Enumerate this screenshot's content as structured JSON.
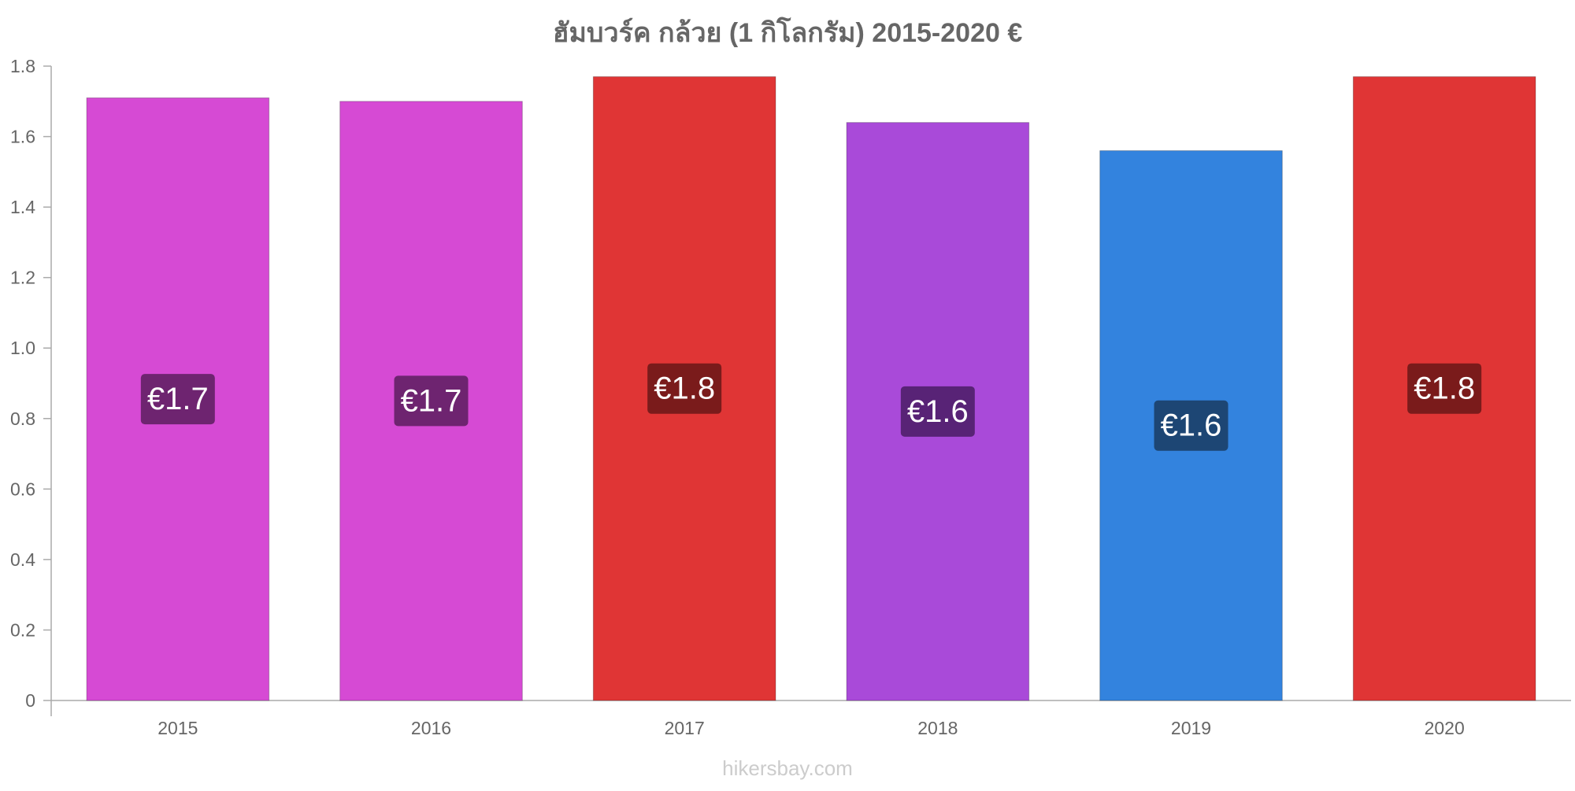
{
  "chart_data": {
    "type": "bar",
    "title": "ฮัมบวร์ค กล้วย (1 กิโลกรัม) 2015-2020 €",
    "categories": [
      "2015",
      "2016",
      "2017",
      "2018",
      "2019",
      "2020"
    ],
    "values": [
      1.71,
      1.7,
      1.77,
      1.64,
      1.56,
      1.77
    ],
    "data_labels": [
      "€1.7",
      "€1.7",
      "€1.8",
      "€1.6",
      "€1.6",
      "€1.8"
    ],
    "bar_colors": [
      "#d64ad4",
      "#d64ad4",
      "#e03535",
      "#a94ad9",
      "#3383de",
      "#e03535"
    ],
    "label_bg_colors": [
      "#6e2470",
      "#6e2470",
      "#7a1b1b",
      "#582376",
      "#1d4674",
      "#7a1b1b"
    ],
    "ylim": [
      0,
      1.8
    ],
    "y_ticks": [
      "0",
      "0.2",
      "0.4",
      "0.6",
      "0.8",
      "1.0",
      "1.2",
      "1.4",
      "1.6",
      "1.8"
    ],
    "xlabel": "",
    "ylabel": "",
    "grid": false,
    "legend": "none"
  },
  "watermark": "hikersbay.com"
}
